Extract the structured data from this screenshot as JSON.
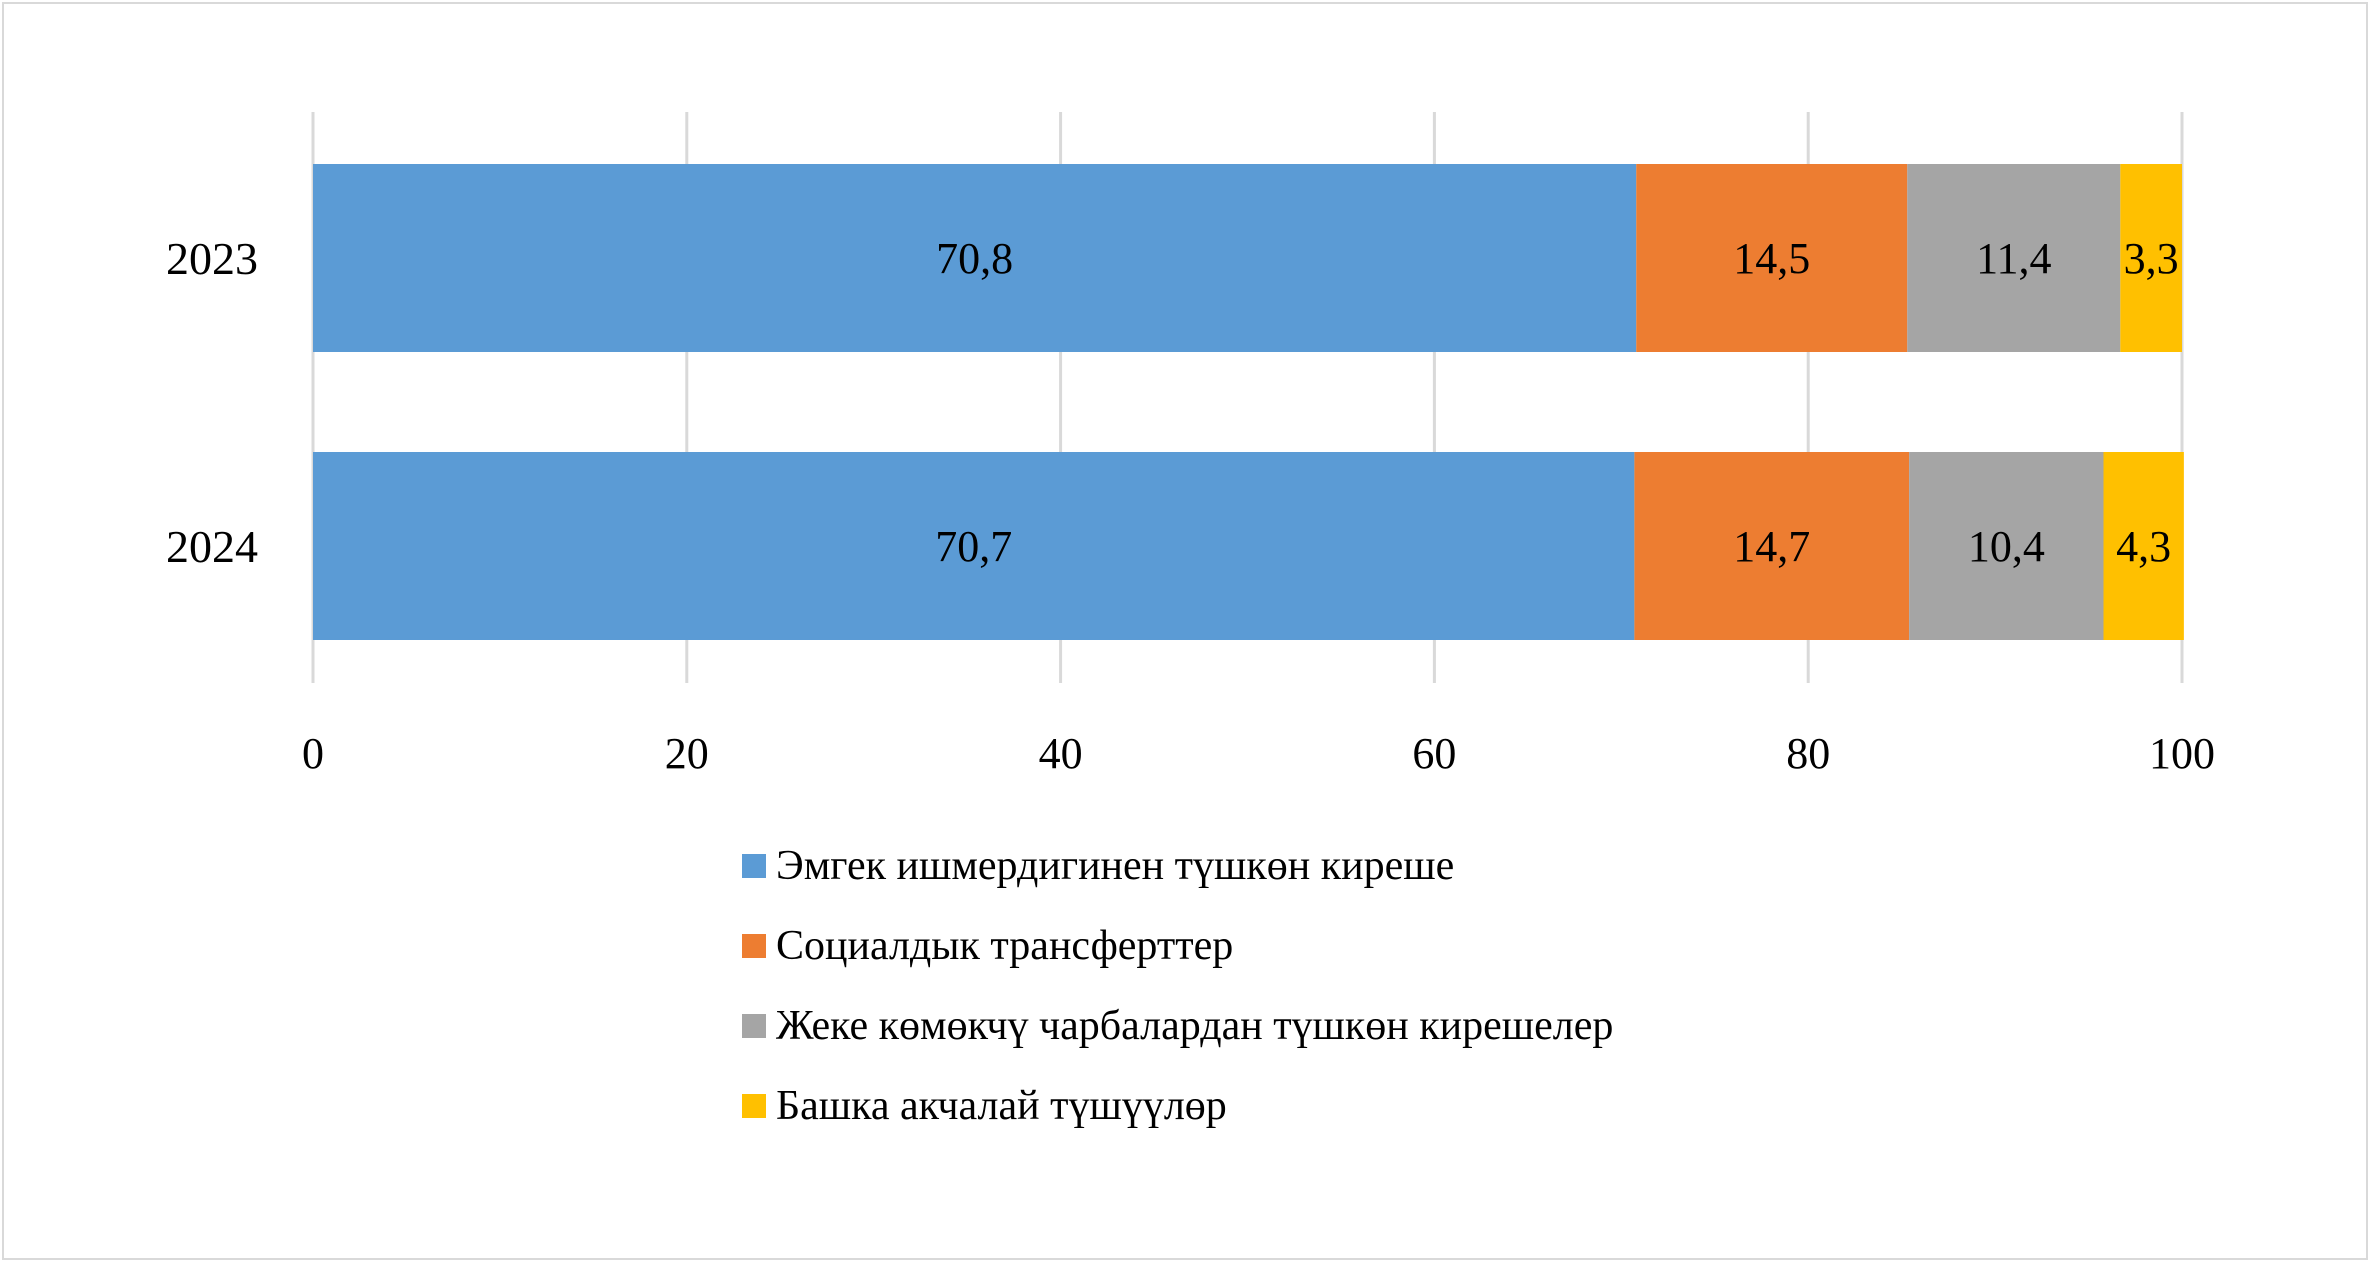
{
  "chart_data": {
    "type": "bar",
    "orientation": "horizontal",
    "stacked": true,
    "categories": [
      "2023",
      "2024"
    ],
    "series": [
      {
        "name": "Эмгек ишмердигинен түшкөн киреше",
        "values": [
          70.8,
          70.7
        ],
        "labels": [
          "70,8",
          "70,7"
        ],
        "color": "#5b9bd5"
      },
      {
        "name": "Социалдык трансферттер",
        "values": [
          14.5,
          14.7
        ],
        "labels": [
          "14,5",
          "14,7"
        ],
        "color": "#ed7d31"
      },
      {
        "name": "Жеке көмөкчү чарбалардан түшкөн кирешелер",
        "values": [
          11.4,
          10.4
        ],
        "labels": [
          "11,4",
          "10,4"
        ],
        "color": "#a5a5a5"
      },
      {
        "name": "Башка акчалай түшүүлөр",
        "values": [
          3.3,
          4.3
        ],
        "labels": [
          "3,3",
          "4,3"
        ],
        "color": "#ffc000"
      }
    ],
    "xlim": [
      0,
      100
    ],
    "xticks": [
      "0",
      "20",
      "40",
      "60",
      "80",
      "100"
    ],
    "grid": "vertical",
    "gridColor": "#d9d9d9",
    "legend": "bottom",
    "title": "",
    "xlabel": "",
    "ylabel": ""
  }
}
